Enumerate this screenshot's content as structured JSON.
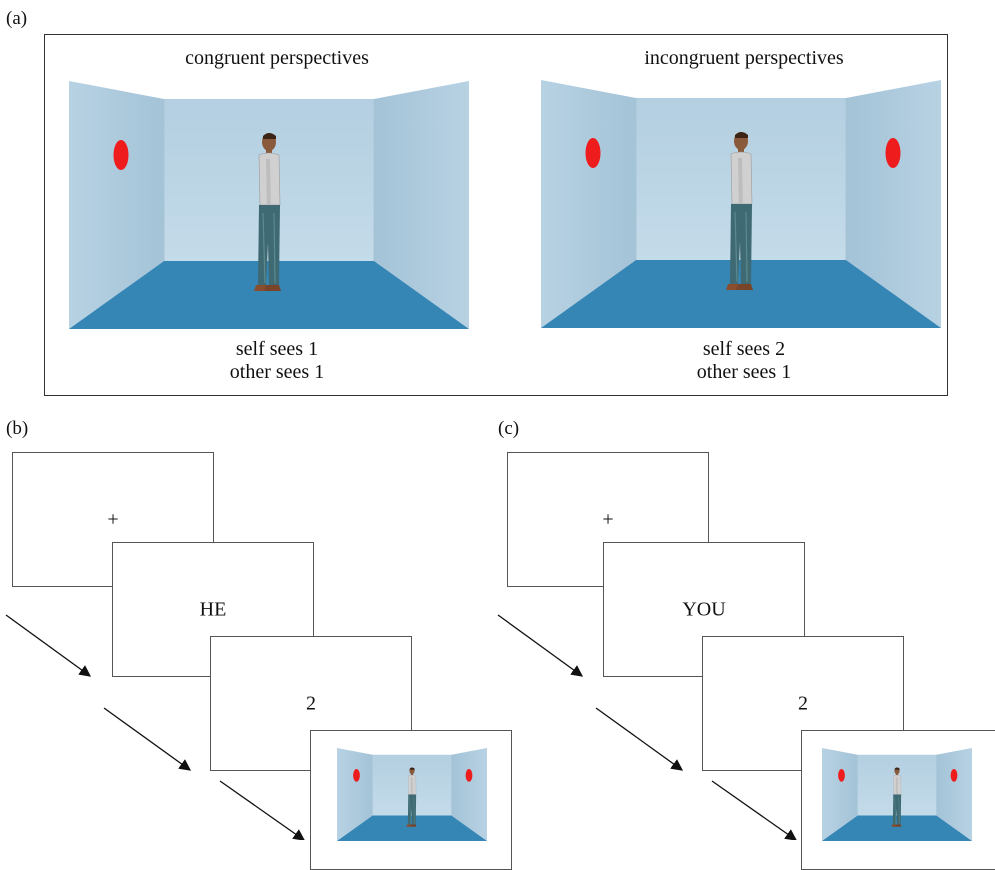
{
  "panel_a": {
    "label": "(a)",
    "left_scene": {
      "title": "congruent perspectives",
      "caption_line1": "self sees 1",
      "caption_line2": "other sees 1",
      "dots_visible": 1
    },
    "right_scene": {
      "title": "incongruent perspectives",
      "caption_line1": "self sees 2",
      "caption_line2": "other sees 1",
      "dots_visible": 2
    }
  },
  "panel_b": {
    "label": "(b)",
    "screen1_text": "+",
    "screen2_text": "HE",
    "screen3_text": "2"
  },
  "panel_c": {
    "label": "(c)",
    "screen1_text": "+",
    "screen2_text": "YOU",
    "screen3_text": "2"
  },
  "colors": {
    "wall_back": "#b9d3e3",
    "wall_side": "#a6c5d9",
    "floor": "#3585b5",
    "dot": "#ee1c1c",
    "frame": "#333333"
  }
}
